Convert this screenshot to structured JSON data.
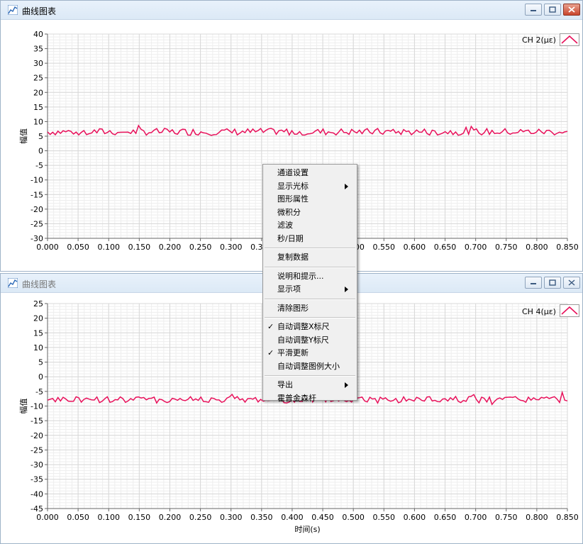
{
  "top_window": {
    "title": "曲线图表",
    "legend": "CH 2(με)",
    "y_axis_title": "幅值",
    "icon": "plot-app-icon"
  },
  "bottom_window": {
    "title": "曲线图表",
    "legend": "CH 4(με)",
    "y_axis_title": "幅值",
    "x_axis_title": "时间(s)",
    "icon": "plot-app-icon"
  },
  "window_controls": [
    "minimize-icon",
    "maximize-icon",
    "close-icon"
  ],
  "context_menu": [
    {
      "label": "通道设置",
      "check": "",
      "submenu": false
    },
    {
      "label": "显示光标",
      "check": "",
      "submenu": true
    },
    {
      "label": "图形属性",
      "check": "",
      "submenu": false
    },
    {
      "label": "微积分",
      "check": "",
      "submenu": false
    },
    {
      "label": "滤波",
      "check": "",
      "submenu": false
    },
    {
      "label": "秒/日期",
      "check": "",
      "submenu": false
    },
    {
      "sep": true
    },
    {
      "label": "复制数据",
      "check": "",
      "submenu": false
    },
    {
      "sep": true
    },
    {
      "label": "说明和提示...",
      "check": "",
      "submenu": false
    },
    {
      "label": "显示项",
      "check": "",
      "submenu": true
    },
    {
      "sep": true
    },
    {
      "label": "清除图形",
      "check": "",
      "submenu": false
    },
    {
      "sep": true
    },
    {
      "label": "自动调整X标尺",
      "check": "✓",
      "submenu": false
    },
    {
      "label": "自动调整Y标尺",
      "check": "",
      "submenu": false
    },
    {
      "label": "平滑更新",
      "check": "✓",
      "submenu": false
    },
    {
      "label": "自动调整图例大小",
      "check": "",
      "submenu": false
    },
    {
      "sep": true
    },
    {
      "label": "导出",
      "check": "",
      "submenu": true
    },
    {
      "label": "霍普金森杆",
      "check": "",
      "submenu": false
    }
  ],
  "colors": {
    "trace": "#e8105a",
    "grid_major": "#d8d8d8",
    "grid_minor": "#eeeeee",
    "axis": "#666666"
  },
  "chart_data": [
    {
      "type": "line",
      "series": [
        {
          "name": "CH 2(με)",
          "mean": 6.5,
          "amplitude": 1.2
        }
      ],
      "xlim": [
        0,
        0.85
      ],
      "ylim": [
        -30,
        40
      ],
      "x_ticks": [
        "0.000",
        "0.050",
        "0.100",
        "0.150",
        "0.200",
        "0.250",
        "0.300",
        "0.350",
        "0.400",
        "0.450",
        "0.500",
        "0.550",
        "0.600",
        "0.650",
        "0.700",
        "0.750",
        "0.800",
        "0.850"
      ],
      "y_ticks": [
        "40",
        "35",
        "30",
        "25",
        "20",
        "15",
        "10",
        "5",
        "0",
        "-5",
        "-10",
        "-15",
        "-20",
        "-25",
        "-30"
      ],
      "ylabel": "幅值"
    },
    {
      "type": "line",
      "series": [
        {
          "name": "CH 4(με)",
          "mean": -7.8,
          "amplitude": 1.2
        }
      ],
      "xlim": [
        0,
        0.85
      ],
      "ylim": [
        -45,
        25
      ],
      "x_ticks": [
        "0.000",
        "0.050",
        "0.100",
        "0.150",
        "0.200",
        "0.250",
        "0.300",
        "0.350",
        "0.400",
        "0.450",
        "0.500",
        "0.550",
        "0.600",
        "0.650",
        "0.700",
        "0.750",
        "0.800",
        "0.850"
      ],
      "y_ticks": [
        "25",
        "20",
        "15",
        "10",
        "5",
        "0",
        "-5",
        "-10",
        "-15",
        "-20",
        "-25",
        "-30",
        "-35",
        "-40",
        "-45"
      ],
      "xlabel": "时间(s)",
      "ylabel": "幅值"
    }
  ]
}
